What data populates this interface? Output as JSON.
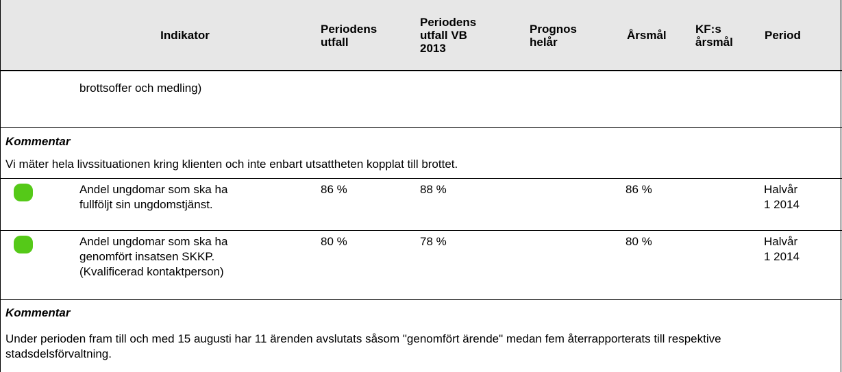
{
  "table": {
    "columns": [
      "Indikator",
      "Periodens\nutfall",
      "Periodens\nutfall VB\n2013",
      "Prognos\nhelår",
      "Årsmål",
      "KF:s\nårsmål",
      "Period"
    ],
    "continuation": "brottsoffer och medling)",
    "comments": [
      {
        "title": "Kommentar",
        "text": "Vi mäter hela livssituationen kring klienten och inte enbart utsattheten kopplat till brottet."
      },
      {
        "title": "Kommentar",
        "text": "Under perioden fram till och med 15 augusti har 11 ärenden avslutats såsom \"genomfört ärende\" medan fem återrapporterats till respektive stadsdelsförvaltning."
      }
    ],
    "indicators": [
      {
        "name": "Andel ungdomar som ska ha\nfullföljt sin ungdomstjänst.",
        "outcome": "86 %",
        "outcome_vb2013": "88 %",
        "target": "86 %",
        "period": "Halvår\n1 2014"
      },
      {
        "name": "Andel ungdomar som ska ha\ngenomfört insatsen SKKP.\n(Kvalificerad kontaktperson)",
        "outcome": "80 %",
        "outcome_vb2013": "78 %",
        "target": "80 %",
        "period": "Halvår\n1 2014"
      }
    ]
  }
}
